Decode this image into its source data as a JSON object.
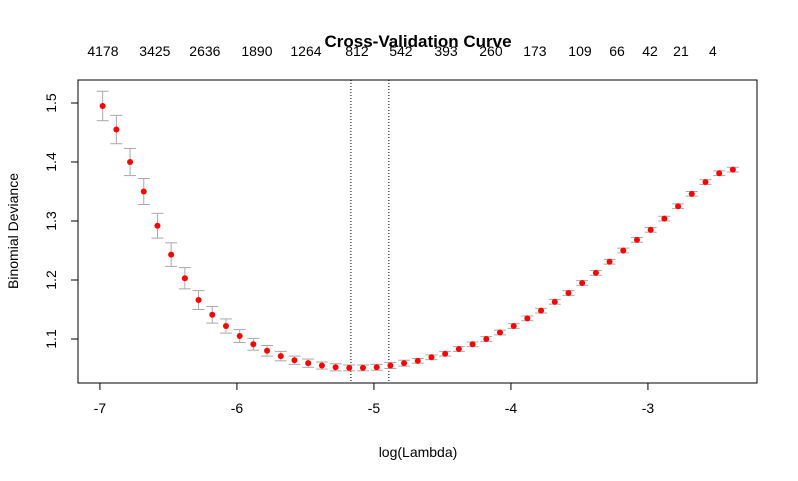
{
  "chart_data": {
    "type": "scatter",
    "title": "Cross-Validation Curve",
    "xlabel": "log(Lambda)",
    "ylabel": "Binomial Deviance",
    "x": [
      -6.98,
      -6.88,
      -6.78,
      -6.68,
      -6.58,
      -6.48,
      -6.38,
      -6.28,
      -6.18,
      -6.08,
      -5.98,
      -5.88,
      -5.78,
      -5.68,
      -5.58,
      -5.48,
      -5.38,
      -5.28,
      -5.18,
      -5.08,
      -4.98,
      -4.88,
      -4.78,
      -4.68,
      -4.58,
      -4.48,
      -4.38,
      -4.28,
      -4.18,
      -4.08,
      -3.98,
      -3.88,
      -3.78,
      -3.68,
      -3.58,
      -3.48,
      -3.38,
      -3.28,
      -3.18,
      -3.08,
      -2.98,
      -2.88,
      -2.78,
      -2.68,
      -2.58,
      -2.48,
      -2.38
    ],
    "y": [
      1.495,
      1.455,
      1.4,
      1.35,
      1.292,
      1.243,
      1.203,
      1.166,
      1.141,
      1.122,
      1.105,
      1.091,
      1.08,
      1.071,
      1.064,
      1.059,
      1.055,
      1.052,
      1.051,
      1.051,
      1.052,
      1.055,
      1.059,
      1.063,
      1.069,
      1.075,
      1.083,
      1.091,
      1.1,
      1.111,
      1.122,
      1.135,
      1.148,
      1.163,
      1.178,
      1.195,
      1.212,
      1.231,
      1.25,
      1.268,
      1.285,
      1.304,
      1.325,
      1.346,
      1.366,
      1.381,
      1.387
    ],
    "errors": [
      0.025,
      0.024,
      0.023,
      0.022,
      0.021,
      0.02,
      0.018,
      0.016,
      0.014,
      0.012,
      0.011,
      0.01,
      0.009,
      0.008,
      0.007,
      0.007,
      0.006,
      0.006,
      0.005,
      0.005,
      0.005,
      0.005,
      0.005,
      0.004,
      0.004,
      0.004,
      0.004,
      0.004,
      0.004,
      0.004,
      0.004,
      0.004,
      0.004,
      0.004,
      0.004,
      0.004,
      0.004,
      0.004,
      0.004,
      0.004,
      0.004,
      0.004,
      0.004,
      0.004,
      0.004,
      0.004,
      0.004
    ],
    "color": "#ff0000",
    "error_color": "#a9a9a9",
    "xlim": [
      -7.16,
      -2.204
    ],
    "ylim": [
      1.0254,
      1.539
    ],
    "xticks": [
      -7,
      -6,
      -5,
      -4,
      -3
    ],
    "yticks": [
      1.1,
      1.2,
      1.3,
      1.4,
      1.5
    ],
    "top_ticks": [
      {
        "value": -6.978,
        "label": "4178"
      },
      {
        "value": -6.599,
        "label": "3425"
      },
      {
        "value": -6.234,
        "label": "2636"
      },
      {
        "value": -5.854,
        "label": "1890"
      },
      {
        "value": -5.496,
        "label": "1264"
      },
      {
        "value": -5.124,
        "label": "812"
      },
      {
        "value": -4.803,
        "label": "542"
      },
      {
        "value": -4.474,
        "label": "393"
      },
      {
        "value": -4.146,
        "label": "260"
      },
      {
        "value": -3.825,
        "label": "173"
      },
      {
        "value": -3.496,
        "label": "109"
      },
      {
        "value": -3.226,
        "label": "66"
      },
      {
        "value": -2.985,
        "label": "42"
      },
      {
        "value": -2.759,
        "label": "21"
      },
      {
        "value": -2.526,
        "label": "4"
      }
    ],
    "vlines": [
      -5.168,
      -4.891
    ]
  }
}
